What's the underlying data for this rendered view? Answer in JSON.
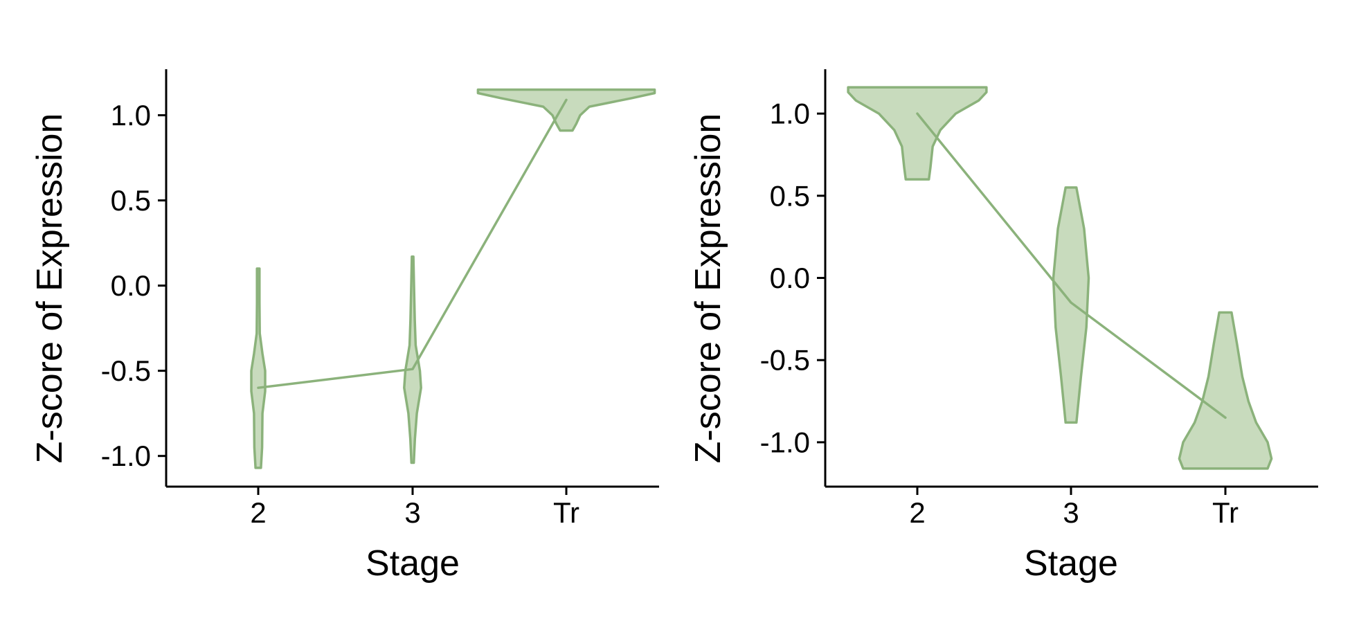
{
  "colors": {
    "violin_fill": "#c8dbbd",
    "violin_stroke": "#8bb27b",
    "line": "#8bb27b",
    "axis": "#000000"
  },
  "chart_data": [
    {
      "type": "violin",
      "title": "",
      "xlabel": "Stage",
      "ylabel": "Z-score of Expression",
      "categories": [
        "2",
        "3",
        "Tr"
      ],
      "y_ticks": [
        -1.0,
        -0.5,
        0.0,
        0.5,
        1.0
      ],
      "y_tick_labels": [
        "-1.0",
        "-0.5",
        "0.0",
        "0.5",
        "1.0"
      ],
      "ylim": [
        -1.18,
        1.27
      ],
      "grid": false,
      "legend": "none",
      "mean_line": [
        -0.6,
        -0.49,
        1.09
      ],
      "violins": [
        {
          "category": "2",
          "min": -1.07,
          "max": 0.1,
          "profile": [
            [
              -1.07,
              0.035
            ],
            [
              -0.95,
              0.05
            ],
            [
              -0.75,
              0.055
            ],
            [
              -0.62,
              0.09
            ],
            [
              -0.5,
              0.09
            ],
            [
              -0.4,
              0.055
            ],
            [
              -0.28,
              0.02
            ],
            [
              -0.1,
              0.016
            ],
            [
              0.1,
              0.016
            ]
          ]
        },
        {
          "category": "3",
          "min": -1.04,
          "max": 0.17,
          "profile": [
            [
              -1.04,
              0.015
            ],
            [
              -0.9,
              0.03
            ],
            [
              -0.75,
              0.055
            ],
            [
              -0.6,
              0.11
            ],
            [
              -0.5,
              0.095
            ],
            [
              -0.35,
              0.04
            ],
            [
              -0.2,
              0.028
            ],
            [
              0.0,
              0.018
            ],
            [
              0.17,
              0.01
            ]
          ]
        },
        {
          "category": "Tr",
          "min": 0.91,
          "max": 1.15,
          "profile": [
            [
              0.91,
              0.08
            ],
            [
              0.95,
              0.13
            ],
            [
              1.0,
              0.18
            ],
            [
              1.05,
              0.3
            ],
            [
              1.1,
              0.85
            ],
            [
              1.13,
              1.15
            ],
            [
              1.15,
              1.15
            ]
          ]
        }
      ]
    },
    {
      "type": "violin",
      "title": "",
      "xlabel": "Stage",
      "ylabel": "Z-score of Expression",
      "categories": [
        "2",
        "3",
        "Tr"
      ],
      "y_ticks": [
        -1.0,
        -0.5,
        0.0,
        0.5,
        1.0
      ],
      "y_tick_labels": [
        "-1.0",
        "-0.5",
        "0.0",
        "0.5",
        "1.0"
      ],
      "ylim": [
        -1.27,
        1.27
      ],
      "grid": false,
      "legend": "none",
      "mean_line": [
        1.0,
        -0.15,
        -0.85
      ],
      "violins": [
        {
          "category": "2",
          "min": 0.6,
          "max": 1.16,
          "profile": [
            [
              0.6,
              0.15
            ],
            [
              0.67,
              0.17
            ],
            [
              0.8,
              0.2
            ],
            [
              0.9,
              0.3
            ],
            [
              1.0,
              0.5
            ],
            [
              1.08,
              0.8
            ],
            [
              1.13,
              0.9
            ],
            [
              1.16,
              0.9
            ]
          ]
        },
        {
          "category": "3",
          "min": -0.88,
          "max": 0.55,
          "profile": [
            [
              -0.88,
              0.07
            ],
            [
              -0.6,
              0.13
            ],
            [
              -0.3,
              0.2
            ],
            [
              0.0,
              0.23
            ],
            [
              0.3,
              0.17
            ],
            [
              0.55,
              0.07
            ]
          ]
        },
        {
          "category": "Tr",
          "min": -1.16,
          "max": -0.21,
          "profile": [
            [
              -1.16,
              0.55
            ],
            [
              -1.1,
              0.6
            ],
            [
              -1.0,
              0.55
            ],
            [
              -0.88,
              0.4
            ],
            [
              -0.75,
              0.3
            ],
            [
              -0.6,
              0.22
            ],
            [
              -0.4,
              0.15
            ],
            [
              -0.21,
              0.08
            ]
          ]
        }
      ]
    }
  ]
}
